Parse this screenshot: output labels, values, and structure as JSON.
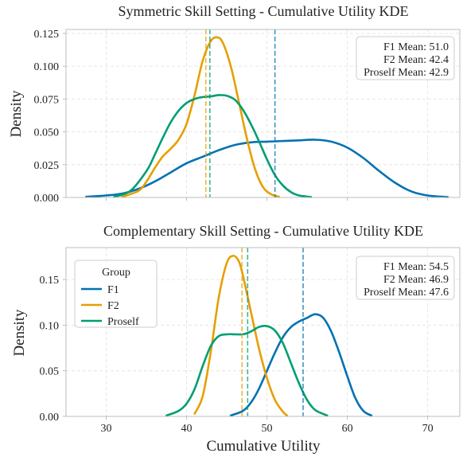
{
  "colors": {
    "F1": "#0072b2",
    "F2": "#e69f00",
    "Proself": "#009e73"
  },
  "chart_data": [
    {
      "type": "line",
      "title": "Symmetric Skill Setting - Cumulative Utility KDE",
      "ylabel": "Density",
      "xlabel": "",
      "xlim": [
        25,
        74
      ],
      "ylim": [
        0,
        0.128
      ],
      "xticks": [
        30,
        40,
        50,
        60,
        70
      ],
      "show_xtick_labels": false,
      "yticks": [
        0.0,
        0.025,
        0.05,
        0.075,
        0.1,
        0.125
      ],
      "ytick_labels": [
        "0.000",
        "0.025",
        "0.050",
        "0.075",
        "0.100",
        "0.125"
      ],
      "grid": true,
      "legend": null,
      "annotation_box": {
        "position": "top-right",
        "lines": [
          "F1 Mean: 51.0",
          "F2 Mean: 42.4",
          "Proself Mean: 42.9"
        ]
      },
      "series": [
        {
          "name": "F1",
          "x": [
            27.5,
            30,
            32,
            34,
            36,
            38,
            40,
            42,
            44,
            46,
            48,
            50,
            52,
            54,
            56,
            58,
            60,
            62,
            64,
            66,
            68,
            70,
            72.5
          ],
          "y": [
            0.0005,
            0.0015,
            0.003,
            0.0065,
            0.012,
            0.019,
            0.026,
            0.031,
            0.036,
            0.04,
            0.042,
            0.0425,
            0.043,
            0.0435,
            0.044,
            0.0425,
            0.038,
            0.03,
            0.02,
            0.011,
            0.0045,
            0.0015,
            0.0003
          ]
        },
        {
          "name": "F2",
          "x": [
            32,
            34,
            35,
            36,
            37,
            38,
            39,
            40,
            41,
            42,
            43,
            43.8,
            44.5,
            45.5,
            46.5,
            47.5,
            48.5,
            49.5,
            50.5,
            51.5
          ],
          "y": [
            0.0005,
            0.005,
            0.012,
            0.022,
            0.031,
            0.037,
            0.044,
            0.056,
            0.078,
            0.104,
            0.119,
            0.122,
            0.118,
            0.1,
            0.073,
            0.045,
            0.022,
            0.008,
            0.0025,
            0.0005
          ]
        },
        {
          "name": "Proself",
          "x": [
            31,
            33,
            35,
            36,
            37,
            38,
            39,
            40,
            41,
            42,
            43,
            44,
            45,
            46,
            47,
            48,
            49,
            50,
            51,
            52,
            53,
            54,
            55.5
          ],
          "y": [
            0.0005,
            0.005,
            0.02,
            0.032,
            0.045,
            0.057,
            0.066,
            0.072,
            0.075,
            0.0765,
            0.077,
            0.078,
            0.0775,
            0.0745,
            0.067,
            0.056,
            0.043,
            0.029,
            0.017,
            0.009,
            0.004,
            0.0015,
            0.0003
          ]
        }
      ],
      "mean_lines": [
        {
          "series": "F1",
          "x": 51.0
        },
        {
          "series": "F2",
          "x": 42.4
        },
        {
          "series": "Proself",
          "x": 42.9
        }
      ]
    },
    {
      "type": "line",
      "title": "Complementary Skill Setting - Cumulative Utility KDE",
      "ylabel": "Density",
      "xlabel": "Cumulative Utility",
      "xlim": [
        25,
        74
      ],
      "ylim": [
        0,
        0.185
      ],
      "xticks": [
        30,
        40,
        50,
        60,
        70
      ],
      "xtick_labels": [
        "30",
        "40",
        "50",
        "60",
        "70"
      ],
      "show_xtick_labels": true,
      "yticks": [
        0.0,
        0.05,
        0.1,
        0.15
      ],
      "ytick_labels": [
        "0.00",
        "0.05",
        "0.10",
        "0.15"
      ],
      "grid": true,
      "legend": {
        "title": "Group",
        "position": "top-left",
        "entries": [
          "F1",
          "F2",
          "Proself"
        ]
      },
      "annotation_box": {
        "position": "top-right",
        "lines": [
          "F1 Mean: 54.5",
          "F2 Mean: 46.9",
          "Proself Mean: 47.6"
        ]
      },
      "series": [
        {
          "name": "F1",
          "x": [
            45.5,
            47,
            48,
            49,
            50,
            51,
            52,
            53,
            54,
            55,
            56,
            57,
            58,
            59,
            60,
            61,
            62,
            63
          ],
          "y": [
            0.001,
            0.006,
            0.015,
            0.03,
            0.05,
            0.07,
            0.087,
            0.098,
            0.104,
            0.108,
            0.112,
            0.108,
            0.093,
            0.07,
            0.044,
            0.02,
            0.006,
            0.001
          ]
        },
        {
          "name": "F2",
          "x": [
            41,
            42,
            43,
            44,
            45,
            45.8,
            46.5,
            47,
            48,
            49,
            50,
            51,
            52,
            52.5
          ],
          "y": [
            0.003,
            0.022,
            0.07,
            0.13,
            0.168,
            0.176,
            0.17,
            0.155,
            0.115,
            0.075,
            0.042,
            0.018,
            0.005,
            0.001
          ]
        },
        {
          "name": "Proself",
          "x": [
            37.5,
            39,
            40,
            41,
            42,
            43,
            44,
            45,
            46,
            47,
            48,
            49,
            50,
            51,
            52,
            53,
            54,
            55,
            56,
            57.5
          ],
          "y": [
            0.001,
            0.006,
            0.014,
            0.03,
            0.055,
            0.077,
            0.088,
            0.09,
            0.09,
            0.09,
            0.093,
            0.098,
            0.099,
            0.094,
            0.08,
            0.058,
            0.036,
            0.018,
            0.007,
            0.001
          ]
        }
      ],
      "mean_lines": [
        {
          "series": "F1",
          "x": 54.5
        },
        {
          "series": "F2",
          "x": 46.9
        },
        {
          "series": "Proself",
          "x": 47.6
        }
      ]
    }
  ]
}
